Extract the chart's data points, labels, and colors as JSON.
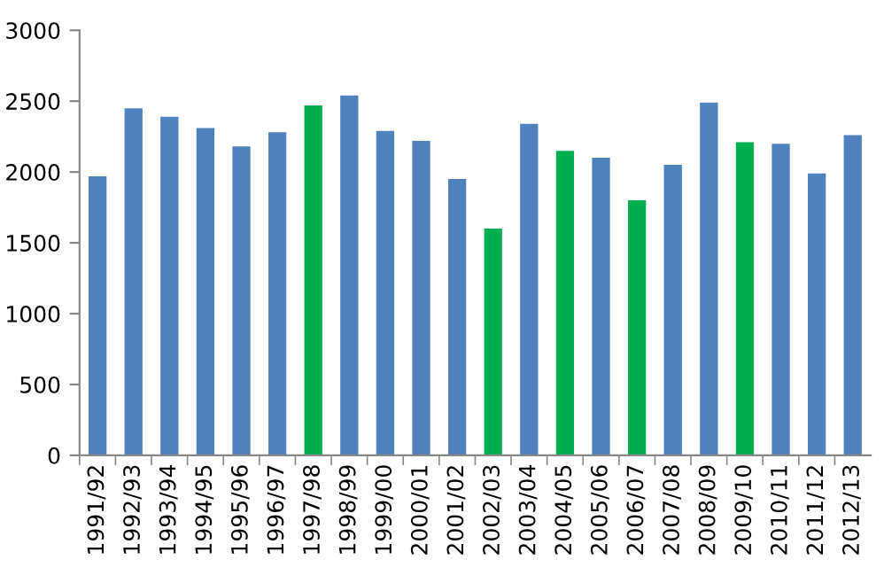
{
  "chart_data": {
    "type": "bar",
    "categories": [
      "1991/92",
      "1992/93",
      "1993/94",
      "1994/95",
      "1995/96",
      "1996/97",
      "1997/98",
      "1998/99",
      "1999/00",
      "2000/01",
      "2001/02",
      "2002/03",
      "2003/04",
      "2004/05",
      "2005/06",
      "2006/07",
      "2007/08",
      "2008/09",
      "2009/10",
      "2010/11",
      "2011/12",
      "2012/13"
    ],
    "values": [
      1970,
      2450,
      2390,
      2310,
      2180,
      2280,
      2470,
      2540,
      2290,
      2220,
      1950,
      1600,
      2340,
      2150,
      2100,
      1800,
      2050,
      2490,
      2210,
      2200,
      1990,
      2260
    ],
    "colors": [
      "#4f81bd",
      "#4f81bd",
      "#4f81bd",
      "#4f81bd",
      "#4f81bd",
      "#4f81bd",
      "#00b050",
      "#4f81bd",
      "#4f81bd",
      "#4f81bd",
      "#4f81bd",
      "#00b050",
      "#4f81bd",
      "#00b050",
      "#4f81bd",
      "#00b050",
      "#4f81bd",
      "#4f81bd",
      "#00b050",
      "#4f81bd",
      "#4f81bd",
      "#4f81bd"
    ],
    "ylim": [
      0,
      3000
    ],
    "yticks": [
      0,
      500,
      1000,
      1500,
      2000,
      2500,
      3000
    ],
    "grid": false
  }
}
